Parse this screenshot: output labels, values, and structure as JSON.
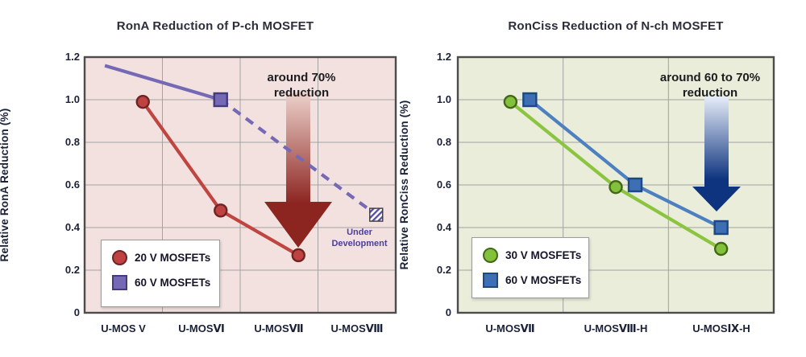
{
  "chart_data": [
    {
      "type": "line",
      "title": "RonA Reduction of P-ch MOSFET",
      "ylabel": "Relative RonA Reduction (%)",
      "ylim": [
        0,
        1.2
      ],
      "ytick_labels": [
        "1.2",
        "1.0",
        "0.8",
        "0.6",
        "0.4",
        "0.2",
        "0"
      ],
      "categories": [
        "U-MOS V",
        "U-MOSⅥ",
        "U-MOSⅦ",
        "U-MOSⅧ"
      ],
      "grid": true,
      "legend_position": "lower-left",
      "plot_bg": "#f3e1e0",
      "series": [
        {
          "label": "20 V MOSFETs",
          "marker": "circle",
          "line_color": "#c0443f",
          "marker_fill": "#bf4242",
          "marker_stroke": "#6f2323",
          "dx": 24,
          "points": [
            {
              "cat": 0,
              "value": 0.99
            },
            {
              "cat": 1,
              "value": 0.48
            },
            {
              "cat": 2,
              "value": 0.27
            }
          ]
        },
        {
          "label": "60 V MOSFETs",
          "marker": "square",
          "line_color": "#7569b5",
          "marker_fill": "#7569b5",
          "marker_stroke": "#453a7d",
          "dx": 24,
          "dash_from_index": 1,
          "points": [
            {
              "x_frac": 0.065,
              "value": 1.16,
              "marker": "none"
            },
            {
              "cat": 1,
              "value": 1.0
            },
            {
              "cat": 3,
              "value": 0.46,
              "marker": "hatched"
            }
          ]
        }
      ],
      "annotation": [
        "around 70%",
        "reduction"
      ],
      "arrow_colors": {
        "light": "#edd2cc",
        "dark": "#8c2420"
      },
      "under_development": [
        "Under",
        "Development"
      ],
      "under_development_color": "#4a3f9e",
      "hatch_color": "#5b50a8"
    },
    {
      "type": "line",
      "title": "RonCiss Reduction of N-ch MOSFET",
      "ylabel": "Relative RonCiss Reduction (%)",
      "ylim": [
        0,
        1.2
      ],
      "ytick_labels": [
        "1.2",
        "1.0",
        "0.8",
        "0.6",
        "0.4",
        "0.2",
        "0"
      ],
      "categories": [
        "U-MOSⅦ",
        "U-MOSⅧ-H",
        "U-MOSⅨ-H"
      ],
      "grid": true,
      "legend_position": "lower-left",
      "plot_bg": "#e9edda",
      "series": [
        {
          "label": "30 V MOSFETs",
          "marker": "circle",
          "line_color": "#8bc43f",
          "marker_fill": "#83c13d",
          "marker_stroke": "#426816",
          "dx": 0,
          "points": [
            {
              "cat": 0,
              "value": 0.99
            },
            {
              "cat": 1,
              "value": 0.59
            },
            {
              "cat": 2,
              "value": 0.3
            }
          ]
        },
        {
          "label": "60 V MOSFETs",
          "marker": "square",
          "line_color": "#4d80c0",
          "marker_fill": "#3e6fb4",
          "marker_stroke": "#1c4886",
          "dx": 24,
          "points": [
            {
              "cat": 0,
              "value": 1.0
            },
            {
              "cat": 1,
              "value": 0.6
            },
            {
              "cat": 2,
              "value": 0.4,
              "dx": 0
            }
          ]
        }
      ],
      "annotation": [
        "around 60 to 70%",
        "reduction"
      ],
      "arrow_colors": {
        "light": "#e7edf8",
        "dark": "#0f347f"
      }
    }
  ]
}
